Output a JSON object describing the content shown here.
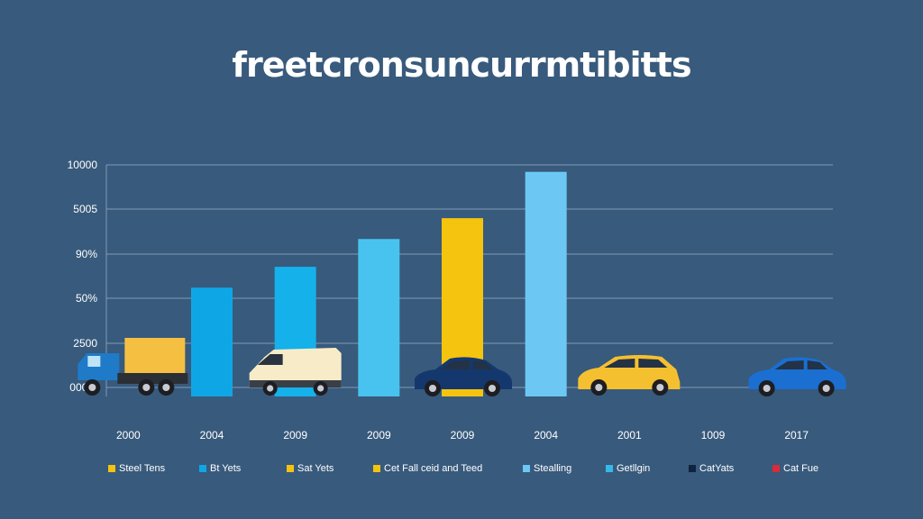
{
  "title": "freetcronsuncurrmtibitts",
  "chart_data": {
    "type": "bar",
    "title": "freetcronsuncurrmtibitts",
    "ylim": [
      0,
      10000
    ],
    "y_tick_labels": [
      "000%",
      "2500",
      "50%",
      "90%",
      "5005",
      "10000"
    ],
    "categories": [
      "2000",
      "2004",
      "2009",
      "2009",
      "2009",
      "2004",
      "2001",
      "1009",
      "2017"
    ],
    "values": [
      0,
      4700,
      5600,
      6800,
      7700,
      9700,
      0,
      0,
      0
    ],
    "bar_colors": [
      "#f5c042",
      "#0fa6e6",
      "#14b1ea",
      "#48c3ef",
      "#f5c40e",
      "#6cc8f3",
      "#f5c042",
      "#0fa6e6",
      "#0fa6e6"
    ],
    "grid": true,
    "legend_position": "bottom",
    "legend": [
      {
        "label": "Steel Tens",
        "color": "#f5c30f"
      },
      {
        "label": "Bt Yets",
        "color": "#0fa6e6"
      },
      {
        "label": "Sat Yets",
        "color": "#f5c30f"
      },
      {
        "label": "Cet Fall ceid and Teed",
        "color": "#f5c30f"
      },
      {
        "label": "Stealling",
        "color": "#6cc8f3"
      },
      {
        "label": "Getllgin",
        "color": "#36b8ea"
      },
      {
        "label": "CatYats",
        "color": "#0f2440"
      },
      {
        "label": "Cat Fue",
        "color": "#d92b3a"
      }
    ],
    "vehicles": [
      {
        "icon": "truck-icon",
        "category_index": 0,
        "color": "#f5c042"
      },
      {
        "icon": "van-icon",
        "category_index": 2,
        "color": "#f8ecc8"
      },
      {
        "icon": "sedan-icon",
        "category_index": 4,
        "color": "#14386e"
      },
      {
        "icon": "hatchback-icon",
        "category_index": 6,
        "color": "#f5c030"
      },
      {
        "icon": "sedan-icon",
        "category_index": 8,
        "color": "#1a6fd1"
      }
    ]
  },
  "colors": {
    "background": "#385a7c",
    "grid": "#7f9bb6",
    "text": "#ffffff"
  }
}
